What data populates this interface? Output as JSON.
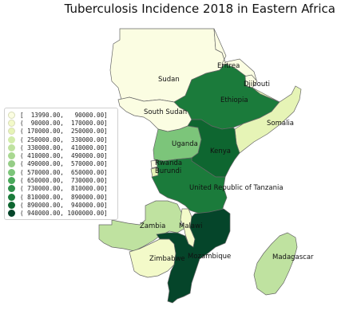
{
  "title": "Tuberculosis Incidence 2018 in Eastern Africa",
  "colors": {
    "c0": "#fbfde2",
    "c1": "#f3fac9",
    "c2": "#e6f4b6",
    "c3": "#bfe2a0",
    "c4": "#a9d891",
    "c5": "#95cd86",
    "c6": "#7cc57a",
    "c7": "#4aa95b",
    "c8": "#2f8f4a",
    "c9": "#1b7b3b",
    "c10": "#0e6630",
    "c11": "#05452a"
  },
  "legend": [
    {
      "label": "[  13990.00,   90000.00]",
      "color": "#fbfde2"
    },
    {
      "label": "(  90000.00,  170000.00]",
      "color": "#f3fac9"
    },
    {
      "label": "( 170000.00,  250000.00]",
      "color": "#e6f4b6"
    },
    {
      "label": "( 250000.00,  330000.00]",
      "color": "#d2ecab"
    },
    {
      "label": "( 330000.00,  410000.00]",
      "color": "#bfe2a0"
    },
    {
      "label": "( 410000.00,  490000.00]",
      "color": "#a9d891"
    },
    {
      "label": "( 490000.00,  570000.00]",
      "color": "#95cd86"
    },
    {
      "label": "( 570000.00,  650000.00]",
      "color": "#7cc57a"
    },
    {
      "label": "( 650000.00,  730000.00]",
      "color": "#4aa95b"
    },
    {
      "label": "( 730000.00,  810000.00]",
      "color": "#2f8f4a"
    },
    {
      "label": "( 810000.00,  890000.00]",
      "color": "#1b7b3b"
    },
    {
      "label": "( 890000.00,  940000.00]",
      "color": "#0e6630"
    },
    {
      "label": "( 940000.00, 1000000.00]",
      "color": "#05452a"
    }
  ],
  "countries": {
    "sudan": "Sudan",
    "eritrea": "Eritrea",
    "djibouti": "Djibouti",
    "ethiopia": "Ethiopia",
    "somalia": "Somalia",
    "south_sudan": "South Sudan",
    "uganda": "Uganda",
    "kenya": "Kenya",
    "rwanda": "Rwanda",
    "burundi": "Burundi",
    "tanzania": "United Republic of Tanzania",
    "zambia": "Zambia",
    "malawi": "Malawi",
    "mozambique": "Mozambique",
    "zimbabwe": "Zimbabwe",
    "madagascar": "Madagascar"
  }
}
